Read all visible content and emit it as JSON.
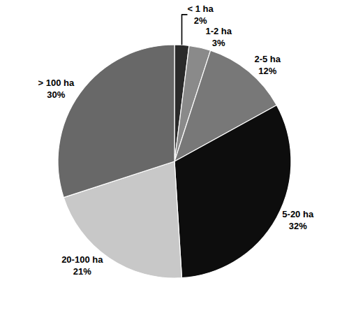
{
  "chart_data": {
    "type": "pie",
    "categories": [
      "< 1 ha",
      "1-2 ha",
      "2-5 ha",
      "5-20 ha",
      "20-100 ha",
      "> 100 ha"
    ],
    "values": [
      2,
      3,
      12,
      32,
      21,
      30
    ],
    "value_labels": [
      "2%",
      "3%",
      "12%",
      "32%",
      "21%",
      "30%"
    ],
    "colors": [
      "#2a2a2a",
      "#8a8a8a",
      "#787878",
      "#0d0d0d",
      "#c8c8c8",
      "#686868"
    ],
    "data_labels": true
  }
}
